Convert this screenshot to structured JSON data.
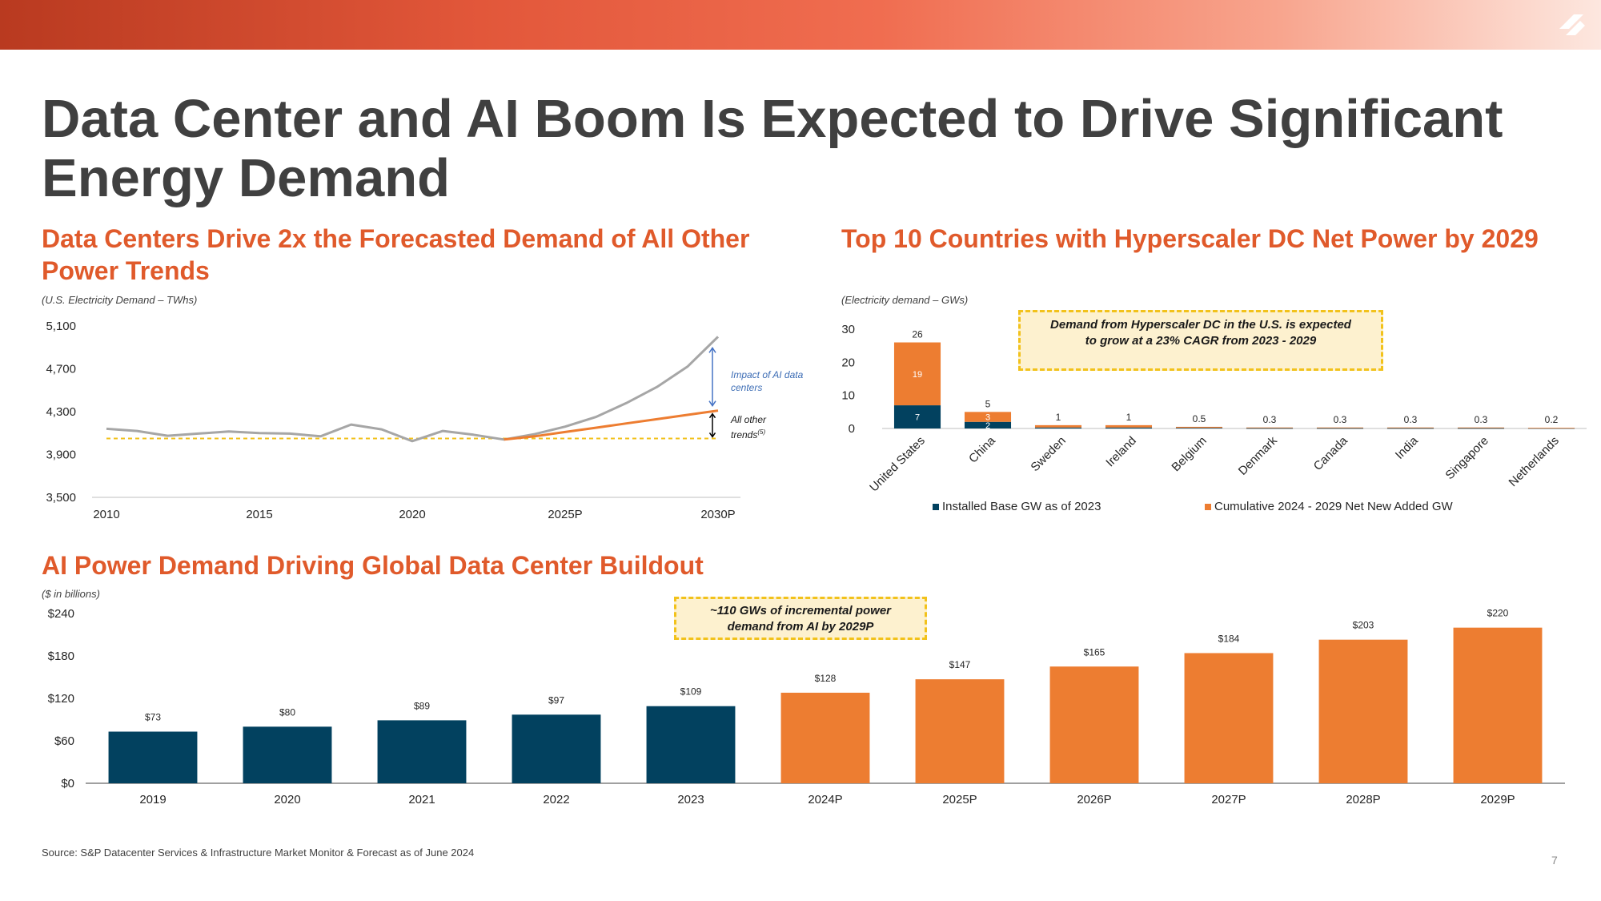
{
  "slide": {
    "title": "Data Center and AI Boom Is Expected to Drive Significant Energy Demand",
    "source": "Source:  S&P Datacenter Services & Infrastructure Market Monitor & Forecast as of June 2024",
    "page_number": "7",
    "colors": {
      "orange_title": "#e05a2b",
      "navy": "#02415f",
      "orange": "#ed7d31",
      "gray_line": "#a6a6a6",
      "callout_fill": "#fdf1cf",
      "callout_border": "#f2c21b"
    }
  },
  "left_chart": {
    "title": "Data Centers Drive 2x the Forecasted Demand of All Other Power Trends",
    "unit_note": "(U.S. Electricity Demand – TWhs)",
    "annotation_ai": "Impact of AI data centers",
    "annotation_other": "All other trends",
    "annotation_other_sup": "(5)"
  },
  "right_chart": {
    "title": "Top 10 Countries with Hyperscaler DC Net Power by 2029",
    "unit_note": "(Electricity demand – GWs)",
    "callout": "Demand from Hyperscaler DC in the U.S. is expected to grow at a 23% CAGR from 2023 - 2029"
  },
  "bottom_chart": {
    "title": "AI Power Demand Driving Global Data Center Buildout",
    "unit_note": "($ in billions)",
    "callout": "~110 GWs of incremental power demand from AI by 2029P"
  },
  "chart_data": [
    {
      "type": "line",
      "title": "Data Centers Drive 2x the Forecasted Demand of All Other Power Trends",
      "ylabel": "(U.S. Electricity Demand – TWhs)",
      "ylim": [
        3500,
        5100
      ],
      "yticks": [
        "5,100",
        "4,700",
        "4,300",
        "3,900",
        "3,500"
      ],
      "ytick_values": [
        5100,
        4700,
        4300,
        3900,
        3500
      ],
      "xtick_labels": [
        "2010",
        "2015",
        "2020",
        "2025P",
        "2030P"
      ],
      "x": [
        2010,
        2011,
        2012,
        2013,
        2014,
        2015,
        2016,
        2017,
        2018,
        2019,
        2020,
        2021,
        2022,
        2023,
        2024,
        2025,
        2026,
        2027,
        2028,
        2029,
        2030
      ],
      "series": [
        {
          "values": [
            4140,
            4120,
            4075,
            4095,
            4115,
            4100,
            4095,
            4070,
            4180,
            4135,
            4025,
            4120,
            4085,
            4040,
            4090,
            4160,
            4250,
            4380,
            4530,
            4720,
            5000
          ],
          "color": "#a6a6a6"
        },
        {
          "values": [
            null,
            null,
            null,
            null,
            null,
            null,
            null,
            null,
            null,
            null,
            null,
            null,
            null,
            4040,
            4070,
            4110,
            4150,
            4190,
            4230,
            4270,
            4310
          ],
          "color": "#ed7d31"
        }
      ],
      "baseline": {
        "value": 4050,
        "style": "dashed",
        "color": "#f2c21b"
      }
    },
    {
      "type": "bar",
      "stacked": true,
      "title": "Top 10 Countries with Hyperscaler DC Net Power by 2029",
      "ylabel": "(Electricity demand – GWs)",
      "ylim": [
        0,
        30
      ],
      "yticks": [
        "30",
        "20",
        "10",
        "0"
      ],
      "ytick_values": [
        30,
        20,
        10,
        0
      ],
      "categories": [
        "United States",
        "China",
        "Sweden",
        "Ireland",
        "Belgium",
        "Denmark",
        "Canada",
        "India",
        "Singapore",
        "Netherlands"
      ],
      "totals": [
        26,
        5,
        1,
        1,
        0.5,
        0.3,
        0.3,
        0.3,
        0.3,
        0.2
      ],
      "total_labels": [
        "26",
        "5",
        "1",
        "1",
        "0.5",
        "0.3",
        "0.3",
        "0.3",
        "0.3",
        "0.2"
      ],
      "series": [
        {
          "name": "Installed Base GW as of 2023",
          "values": [
            7,
            2,
            0.3,
            0.3,
            0.2,
            0.1,
            0.1,
            0.1,
            0.1,
            0.1
          ],
          "labels": [
            "7",
            "2",
            "",
            "",
            "",
            "",
            "",
            "",
            "",
            ""
          ],
          "color": "#02415f"
        },
        {
          "name": "Cumulative 2024 - 2029 Net New Added GW",
          "values": [
            19,
            3,
            0.7,
            0.7,
            0.3,
            0.2,
            0.2,
            0.2,
            0.2,
            0.1
          ],
          "labels": [
            "19",
            "3",
            "",
            "",
            "",
            "",
            "",
            "",
            "",
            ""
          ],
          "color": "#ed7d31"
        }
      ],
      "legend_position": "bottom"
    },
    {
      "type": "bar",
      "title": "AI Power Demand Driving Global Data Center Buildout",
      "ylabel": "($ in billions)",
      "ylim": [
        0,
        240
      ],
      "yticks": [
        "$240",
        "$180",
        "$120",
        "$60",
        "$0"
      ],
      "ytick_values": [
        240,
        180,
        120,
        60,
        0
      ],
      "categories": [
        "2019",
        "2020",
        "2021",
        "2022",
        "2023",
        "2024P",
        "2025P",
        "2026P",
        "2027P",
        "2028P",
        "2029P"
      ],
      "values": [
        73,
        80,
        89,
        97,
        109,
        128,
        147,
        165,
        184,
        203,
        220
      ],
      "value_labels": [
        "$73",
        "$80",
        "$89",
        "$97",
        "$109",
        "$128",
        "$147",
        "$165",
        "$184",
        "$203",
        "$220"
      ],
      "colors": [
        "#02415f",
        "#02415f",
        "#02415f",
        "#02415f",
        "#02415f",
        "#ed7d31",
        "#ed7d31",
        "#ed7d31",
        "#ed7d31",
        "#ed7d31",
        "#ed7d31"
      ]
    }
  ]
}
